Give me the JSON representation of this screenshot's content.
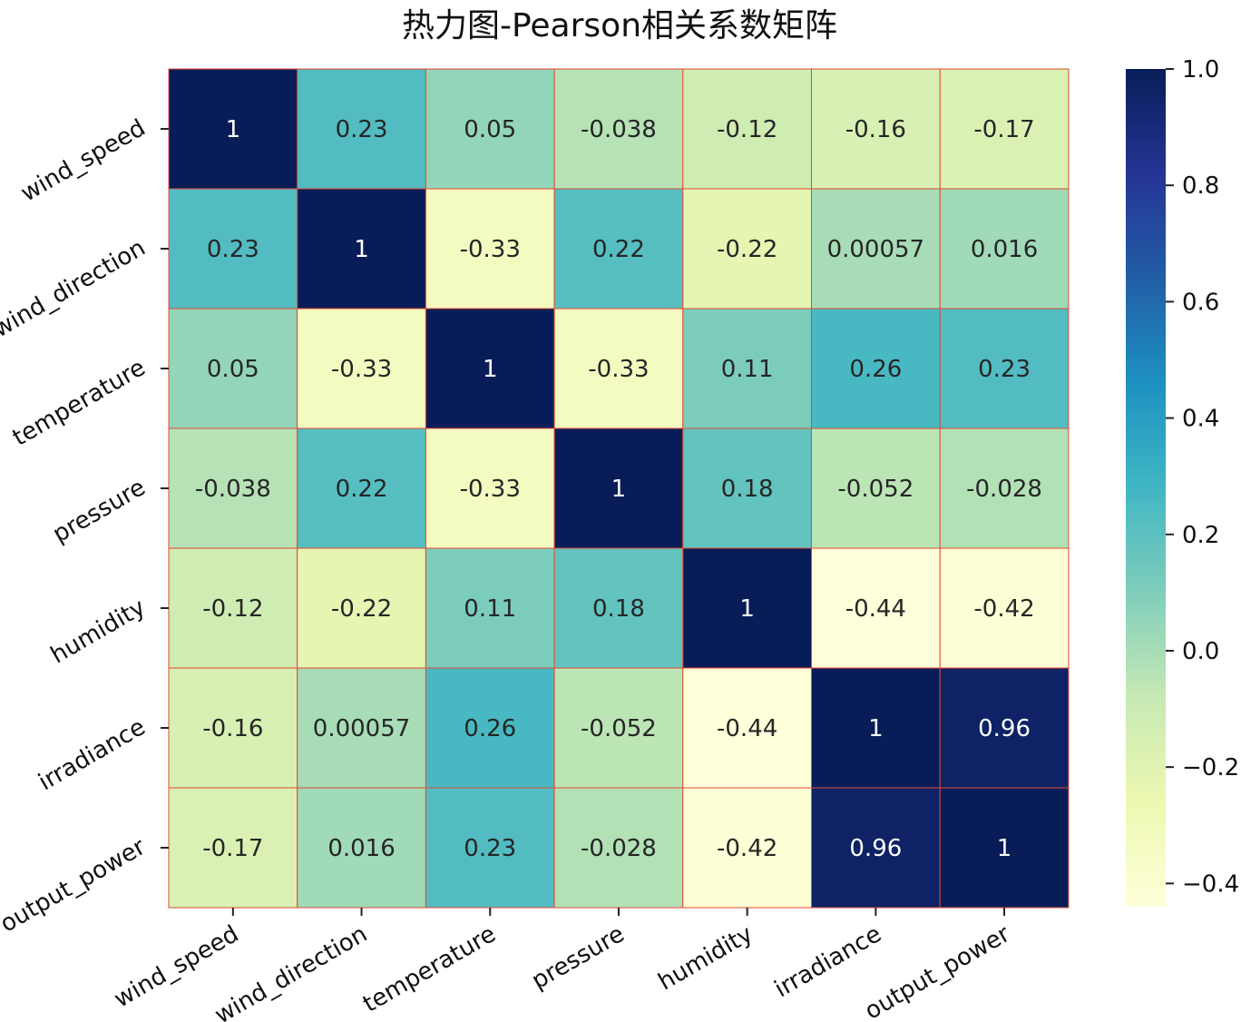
{
  "chart_data": {
    "type": "heatmap",
    "title": "热力图-Pearson相关系数矩阵",
    "x_labels": [
      "wind_speed",
      "wind_direction",
      "temperature",
      "pressure",
      "humidity",
      "irradiance",
      "output_power"
    ],
    "y_labels": [
      "wind_speed",
      "wind_direction",
      "temperature",
      "pressure",
      "humidity",
      "irradiance",
      "output_power"
    ],
    "values": [
      [
        1,
        0.23,
        0.05,
        -0.038,
        -0.12,
        -0.16,
        -0.17
      ],
      [
        0.23,
        1,
        -0.33,
        0.22,
        -0.22,
        0.00057,
        0.016
      ],
      [
        0.05,
        -0.33,
        1,
        -0.33,
        0.11,
        0.26,
        0.23
      ],
      [
        -0.038,
        0.22,
        -0.33,
        1,
        0.18,
        -0.052,
        -0.028
      ],
      [
        -0.12,
        -0.22,
        0.11,
        0.18,
        1,
        -0.44,
        -0.42
      ],
      [
        -0.16,
        0.00057,
        0.26,
        -0.052,
        -0.44,
        1,
        0.96
      ],
      [
        -0.17,
        0.016,
        0.23,
        -0.028,
        -0.42,
        0.96,
        1
      ]
    ],
    "value_labels": [
      [
        "1",
        "0.23",
        "0.05",
        "-0.038",
        "-0.12",
        "-0.16",
        "-0.17"
      ],
      [
        "0.23",
        "1",
        "-0.33",
        "0.22",
        "-0.22",
        "0.00057",
        "0.016"
      ],
      [
        "0.05",
        "-0.33",
        "1",
        "-0.33",
        "0.11",
        "0.26",
        "0.23"
      ],
      [
        "-0.038",
        "0.22",
        "-0.33",
        "1",
        "0.18",
        "-0.052",
        "-0.028"
      ],
      [
        "-0.12",
        "-0.22",
        "0.11",
        "0.18",
        "1",
        "-0.44",
        "-0.42"
      ],
      [
        "-0.16",
        "0.00057",
        "0.26",
        "-0.052",
        "-0.44",
        "1",
        "0.96"
      ],
      [
        "-0.17",
        "0.016",
        "0.23",
        "-0.028",
        "-0.42",
        "0.96",
        "1"
      ]
    ],
    "colormap": "YlGnBu",
    "vmin": -0.44,
    "vmax": 1.0,
    "colorbar_ticks": [
      1.0,
      0.8,
      0.6,
      0.4,
      0.2,
      0.0,
      -0.2,
      -0.4
    ],
    "colorbar_tick_labels": [
      "1.0",
      "0.8",
      "0.6",
      "0.4",
      "0.2",
      "0.0",
      "−0.2",
      "−0.4"
    ],
    "cell_border_color": "#e24a33"
  }
}
